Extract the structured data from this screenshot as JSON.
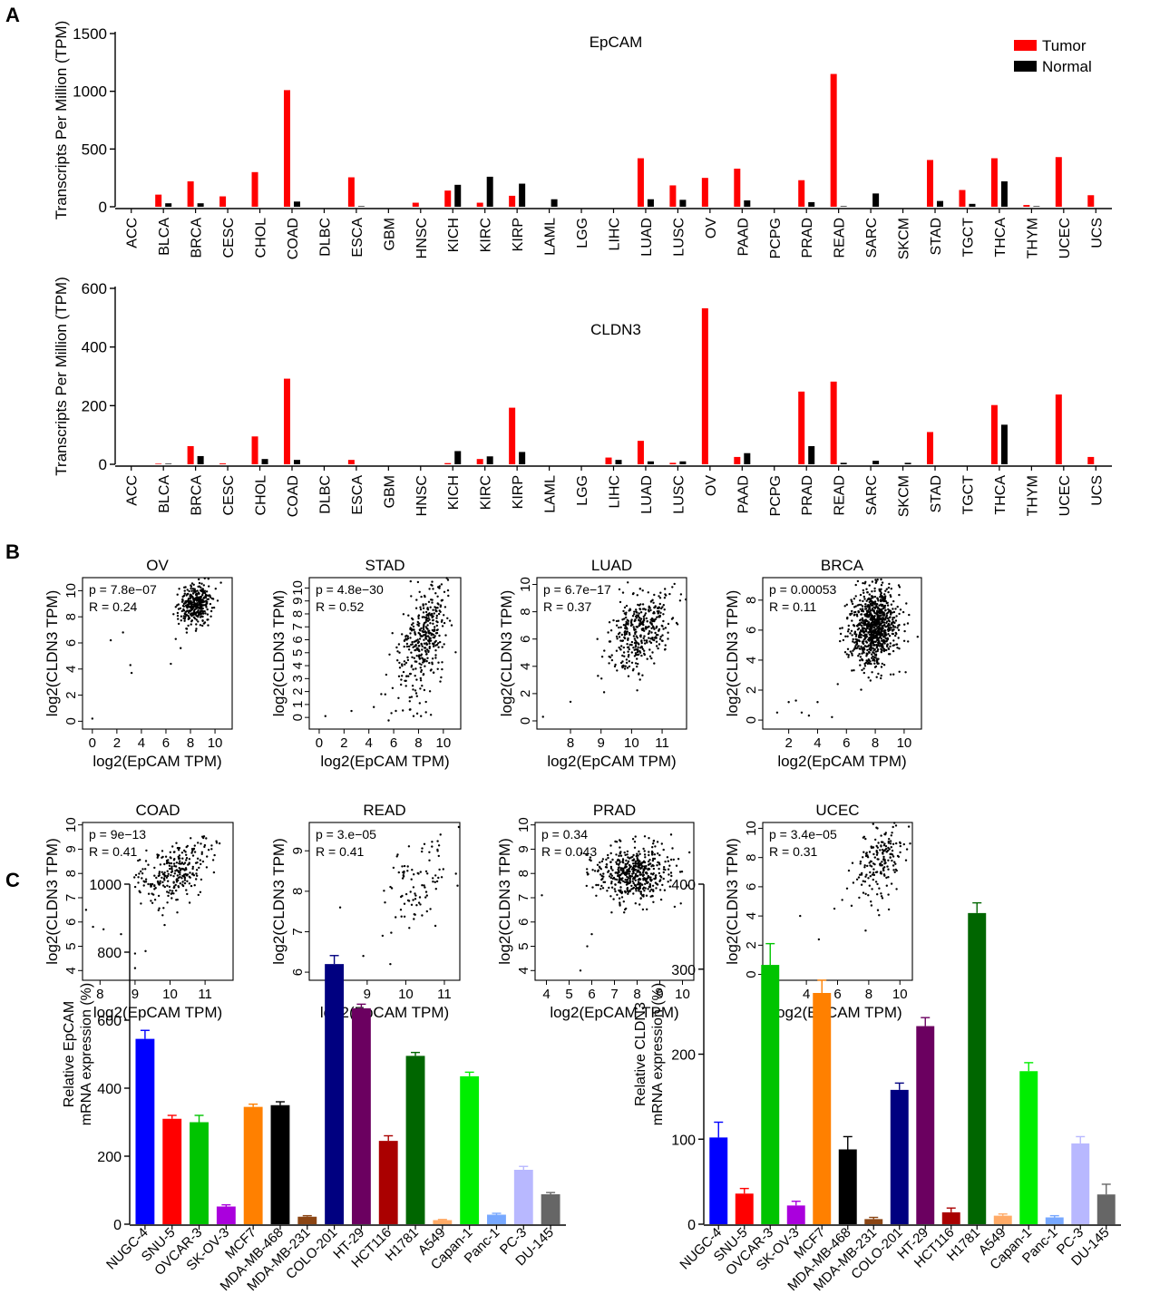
{
  "panel_labels": [
    "A",
    "B",
    "C"
  ],
  "chart_data": [
    {
      "panel": "A",
      "type": "bar",
      "title": "EpCAM",
      "xlabel": "",
      "ylabel": "Transcripts Per Million (TPM)",
      "ylim": [
        0,
        1500
      ],
      "yticks": [
        0,
        500,
        1000,
        1500
      ],
      "legend": {
        "placement": "top-right",
        "entries": [
          "Tumor",
          "Normal"
        ]
      },
      "colors": {
        "Tumor": "#ff0000",
        "Normal": "#000000"
      },
      "categories": [
        "ACC",
        "BLCA",
        "BRCA",
        "CESC",
        "CHOL",
        "COAD",
        "DLBC",
        "ESCA",
        "GBM",
        "HNSC",
        "KICH",
        "KIRC",
        "KIRP",
        "LAML",
        "LGG",
        "LIHC",
        "LUAD",
        "LUSC",
        "OV",
        "PAAD",
        "PCPG",
        "PRAD",
        "READ",
        "SARC",
        "SKCM",
        "STAD",
        "TGCT",
        "THCA",
        "THYM",
        "UCEC",
        "UCS"
      ],
      "series": [
        {
          "name": "Tumor",
          "values": [
            0,
            105,
            220,
            90,
            300,
            1010,
            0,
            255,
            0,
            35,
            140,
            35,
            95,
            0,
            0,
            0,
            420,
            185,
            250,
            330,
            0,
            230,
            1150,
            0,
            0,
            405,
            145,
            420,
            15,
            430,
            100
          ]
        },
        {
          "name": "Normal",
          "values": [
            0,
            30,
            30,
            0,
            0,
            45,
            0,
            5,
            0,
            0,
            190,
            260,
            200,
            65,
            0,
            0,
            65,
            60,
            0,
            55,
            0,
            40,
            5,
            115,
            0,
            50,
            25,
            220,
            5,
            0,
            0
          ]
        }
      ]
    },
    {
      "panel": "A",
      "type": "bar",
      "title": "CLDN3",
      "xlabel": "",
      "ylabel": "Transcripts Per Million (TPM)",
      "ylim": [
        0,
        600
      ],
      "yticks": [
        0,
        200,
        400,
        600
      ],
      "categories": [
        "ACC",
        "BLCA",
        "BRCA",
        "CESC",
        "CHOL",
        "COAD",
        "DLBC",
        "ESCA",
        "GBM",
        "HNSC",
        "KICH",
        "KIRC",
        "KIRP",
        "LAML",
        "LGG",
        "LIHC",
        "LUAD",
        "LUSC",
        "OV",
        "PAAD",
        "PCPG",
        "PRAD",
        "READ",
        "SARC",
        "SKCM",
        "STAD",
        "TGCT",
        "THCA",
        "THYM",
        "UCEC",
        "UCS"
      ],
      "series": [
        {
          "name": "Tumor",
          "values": [
            0,
            2,
            62,
            3,
            95,
            292,
            0,
            15,
            0,
            0,
            4,
            18,
            193,
            0,
            0,
            23,
            80,
            5,
            532,
            25,
            0,
            248,
            282,
            0,
            0,
            110,
            0,
            202,
            0,
            238,
            25
          ]
        },
        {
          "name": "Normal",
          "values": [
            0,
            2,
            28,
            0,
            18,
            15,
            0,
            0,
            0,
            0,
            45,
            27,
            42,
            0,
            0,
            15,
            10,
            10,
            0,
            38,
            0,
            62,
            5,
            12,
            5,
            0,
            0,
            135,
            0,
            0,
            0
          ]
        }
      ]
    },
    {
      "panel": "B",
      "type": "scatter",
      "title": "OV",
      "xlabel": "log2(EpCAM TPM)",
      "ylabel": "log2(CLDN3 TPM)",
      "annotations": [
        "p = 7.8e−07",
        "R = 0.24"
      ],
      "xlim": [
        -0.8,
        11.4
      ],
      "ylim": [
        -0.6,
        11
      ],
      "xticks": [
        0,
        2,
        4,
        6,
        8,
        10
      ],
      "yticks": [
        0,
        2,
        4,
        6,
        8,
        10
      ],
      "cloud": {
        "n": 360,
        "cx": 8.4,
        "cy": 9.0,
        "sx": 0.65,
        "sy": 0.8,
        "r": 0.24
      },
      "outliers": [
        [
          0,
          0.2
        ],
        [
          1.5,
          6.2
        ],
        [
          2.5,
          6.8
        ],
        [
          3.1,
          4.3
        ],
        [
          3.2,
          3.7
        ],
        [
          6.4,
          4.4
        ],
        [
          6.8,
          6.3
        ],
        [
          7.2,
          5.6
        ]
      ]
    },
    {
      "panel": "B",
      "type": "scatter",
      "title": "STAD",
      "xlabel": "log2(EpCAM TPM)",
      "ylabel": "log2(CLDN3 TPM)",
      "annotations": [
        "p = 4.8e−30",
        "R = 0.52"
      ],
      "xlim": [
        -0.8,
        11.4
      ],
      "ylim": [
        -0.9,
        10.8
      ],
      "xticks": [
        0,
        2,
        4,
        6,
        8,
        10
      ],
      "yticks": [
        0,
        1,
        2,
        3,
        4,
        5,
        6,
        7,
        8,
        9,
        10
      ],
      "cloud": {
        "n": 380,
        "cx": 8.5,
        "cy": 6.3,
        "sx": 1.0,
        "sy": 2.2,
        "r": 0.52
      },
      "outliers": [
        [
          0.5,
          0.1
        ],
        [
          2.6,
          0.5
        ],
        [
          4.4,
          0.8
        ],
        [
          5.0,
          1.8
        ],
        [
          5.4,
          3.3
        ],
        [
          7.6,
          0.1
        ],
        [
          7.9,
          0.3
        ],
        [
          8.2,
          0.1
        ],
        [
          8.6,
          0.4
        ],
        [
          9.0,
          0.2
        ],
        [
          8.1,
          1.1
        ],
        [
          8.6,
          1.2
        ],
        [
          7.3,
          0.6
        ]
      ]
    },
    {
      "panel": "B",
      "type": "scatter",
      "title": "LUAD",
      "xlabel": "log2(EpCAM TPM)",
      "ylabel": "log2(CLDN3 TPM)",
      "annotations": [
        "p = 6.7e−17",
        "R = 0.37"
      ],
      "xlim": [
        6.9,
        11.8
      ],
      "ylim": [
        -0.6,
        10.5
      ],
      "xticks": [
        8,
        9,
        10,
        11
      ],
      "yticks": [
        0,
        2,
        4,
        6,
        8,
        10
      ],
      "cloud": {
        "n": 380,
        "cx": 10.3,
        "cy": 6.6,
        "sx": 0.5,
        "sy": 1.5,
        "r": 0.37
      },
      "outliers": [
        [
          7.1,
          0.3
        ],
        [
          8.0,
          1.4
        ],
        [
          8.9,
          3.3
        ],
        [
          9.1,
          2.1
        ]
      ]
    },
    {
      "panel": "B",
      "type": "scatter",
      "title": "BRCA",
      "xlabel": "log2(EpCAM TPM)",
      "ylabel": "log2(CLDN3 TPM)",
      "annotations": [
        "p = 0.00053",
        "R = 0.11"
      ],
      "xlim": [
        0.2,
        11.2
      ],
      "ylim": [
        -0.6,
        9.5
      ],
      "xticks": [
        2,
        4,
        6,
        8,
        10
      ],
      "yticks": [
        0,
        2,
        4,
        6,
        8
      ],
      "cloud": {
        "n": 900,
        "cx": 7.9,
        "cy": 6.2,
        "sx": 0.8,
        "sy": 1.3,
        "r": 0.11
      },
      "outliers": [
        [
          1.2,
          0.5
        ],
        [
          2.0,
          1.2
        ],
        [
          2.5,
          1.3
        ],
        [
          2.9,
          0.5
        ],
        [
          3.4,
          0.3
        ],
        [
          4.0,
          1.2
        ],
        [
          5.0,
          0.2
        ],
        [
          5.4,
          2.4
        ]
      ]
    },
    {
      "panel": "B",
      "type": "scatter",
      "title": "COAD",
      "xlabel": "log2(EpCAM TPM)",
      "ylabel": "log2(CLDN3 TPM)",
      "annotations": [
        "p = 9e−13",
        "R = 0.41"
      ],
      "xlim": [
        7.5,
        11.8
      ],
      "ylim": [
        3.6,
        10.1
      ],
      "xticks": [
        8,
        9,
        10,
        11
      ],
      "yticks": [
        4,
        5,
        6,
        7,
        8,
        9,
        10
      ],
      "cloud": {
        "n": 270,
        "cx": 10.1,
        "cy": 8.0,
        "sx": 0.55,
        "sy": 0.7,
        "r": 0.41
      },
      "outliers": [
        [
          7.6,
          6.5
        ],
        [
          7.8,
          5.8
        ],
        [
          8.1,
          5.7
        ],
        [
          8.6,
          5.5
        ],
        [
          9.0,
          4.1
        ],
        [
          9.0,
          4.7
        ],
        [
          9.3,
          4.8
        ]
      ]
    },
    {
      "panel": "B",
      "type": "scatter",
      "title": "READ",
      "xlabel": "log2(EpCAM TPM)",
      "ylabel": "log2(CLDN3 TPM)",
      "annotations": [
        "p = 3.e−05",
        "R = 0.41"
      ],
      "xlim": [
        7.5,
        11.4
      ],
      "ylim": [
        5.8,
        9.7
      ],
      "xticks": [
        8,
        9,
        10,
        11
      ],
      "yticks": [
        6,
        7,
        8,
        9
      ],
      "cloud": {
        "n": 90,
        "cx": 10.3,
        "cy": 8.1,
        "sx": 0.45,
        "sy": 0.55,
        "r": 0.41
      },
      "outliers": [
        [
          8.3,
          7.6
        ],
        [
          8.9,
          6.4
        ],
        [
          9.4,
          6.9
        ],
        [
          9.6,
          6.2
        ],
        [
          10.9,
          9.4
        ]
      ]
    },
    {
      "panel": "B",
      "type": "scatter",
      "title": "PRAD",
      "xlabel": "log2(EpCAM TPM)",
      "ylabel": "log2(CLDN3 TPM)",
      "annotations": [
        "p = 0.34",
        "R = 0.043"
      ],
      "xlim": [
        3.5,
        10.5
      ],
      "ylim": [
        3.6,
        10.1
      ],
      "xticks": [
        4,
        5,
        6,
        7,
        8,
        9,
        10
      ],
      "yticks": [
        4,
        5,
        6,
        7,
        8,
        9,
        10
      ],
      "cloud": {
        "n": 500,
        "cx": 7.8,
        "cy": 8.0,
        "sx": 0.8,
        "sy": 0.6,
        "r": 0.043
      },
      "outliers": [
        [
          3.8,
          7.1
        ],
        [
          5.5,
          4.0
        ],
        [
          5.8,
          5.0
        ],
        [
          6.0,
          5.5
        ],
        [
          9.5,
          9.6
        ],
        [
          10.2,
          7.5
        ]
      ]
    },
    {
      "panel": "B",
      "type": "scatter",
      "title": "UCEC",
      "xlabel": "log2(EpCAM TPM)",
      "ylabel": "log2(CLDN3 TPM)",
      "annotations": [
        "p = 3.4e−05",
        "R = 0.31"
      ],
      "xlim": [
        1.2,
        10.8
      ],
      "ylim": [
        -0.4,
        10.4
      ],
      "xticks": [
        2,
        4,
        6,
        8,
        10
      ],
      "yticks": [
        0,
        2,
        4,
        6,
        8,
        10
      ],
      "cloud": {
        "n": 180,
        "cx": 8.8,
        "cy": 7.8,
        "sx": 0.75,
        "sy": 1.3,
        "r": 0.31
      },
      "outliers": [
        [
          1.8,
          0.3
        ],
        [
          3.6,
          4.0
        ],
        [
          4.8,
          2.4
        ],
        [
          5.8,
          4.5
        ],
        [
          6.3,
          5.1
        ],
        [
          6.9,
          4.7
        ],
        [
          7.8,
          3.0
        ]
      ]
    },
    {
      "panel": "C",
      "type": "bar",
      "title": "",
      "xlabel": "",
      "ylabel": "Relative EpCAM mRNA expression (%)",
      "ylabel_lines": [
        "Relative EpCAM",
        "mRNA expression (%)"
      ],
      "ylim": [
        0,
        1000
      ],
      "yticks": [
        0,
        200,
        400,
        600,
        800,
        1000
      ],
      "categories": [
        "NUGC-4",
        "SNU-5",
        "OVCAR-3",
        "SK-OV-3",
        "MCF7",
        "MDA-MB-468",
        "MDA-MB-231",
        "COLO-201",
        "HT-29",
        "HCT116",
        "H1781",
        "A549",
        "Capan-1",
        "Panc-1",
        "PC-3",
        "DU-145"
      ],
      "values": [
        545,
        310,
        300,
        52,
        345,
        350,
        22,
        765,
        635,
        245,
        495,
        12,
        435,
        28,
        160,
        88
      ],
      "errors": [
        25,
        10,
        20,
        5,
        8,
        10,
        3,
        25,
        12,
        15,
        10,
        2,
        12,
        4,
        10,
        5
      ],
      "colors": [
        "#0000ff",
        "#ff0000",
        "#00c400",
        "#aa00dd",
        "#ff8000",
        "#000000",
        "#8b4513",
        "#000080",
        "#6b0060",
        "#aa0000",
        "#006600",
        "#ffaa66",
        "#00ee00",
        "#77a8ff",
        "#b8b8ff",
        "#666666"
      ]
    },
    {
      "panel": "C",
      "type": "bar",
      "title": "",
      "xlabel": "",
      "ylabel": "Relative CLDN3 mRNA expression (%)",
      "ylabel_lines": [
        "Relative CLDN3",
        "mRNA expression (%)"
      ],
      "ylim": [
        0,
        400
      ],
      "yticks": [
        0,
        100,
        200,
        300,
        400
      ],
      "categories": [
        "NUGC-4",
        "SNU-5",
        "OVCAR-3",
        "SK-OV-3",
        "MCF7",
        "MDA-MB-468",
        "MDA-MB-231",
        "COLO-201",
        "HT-29",
        "HCT116",
        "H1781",
        "A549",
        "Capan-1",
        "Panc-1",
        "PC-3",
        "DU-145"
      ],
      "values": [
        102,
        36,
        305,
        22,
        272,
        88,
        6,
        158,
        233,
        14,
        366,
        10,
        180,
        8,
        95,
        35
      ],
      "errors": [
        18,
        6,
        25,
        5,
        15,
        15,
        2,
        8,
        10,
        5,
        12,
        2,
        10,
        2,
        8,
        12
      ],
      "colors": [
        "#0000ff",
        "#ff0000",
        "#00c400",
        "#aa00dd",
        "#ff8000",
        "#000000",
        "#8b4513",
        "#000080",
        "#6b0060",
        "#aa0000",
        "#006600",
        "#ffaa66",
        "#00ee00",
        "#77a8ff",
        "#b8b8ff",
        "#666666"
      ]
    }
  ]
}
